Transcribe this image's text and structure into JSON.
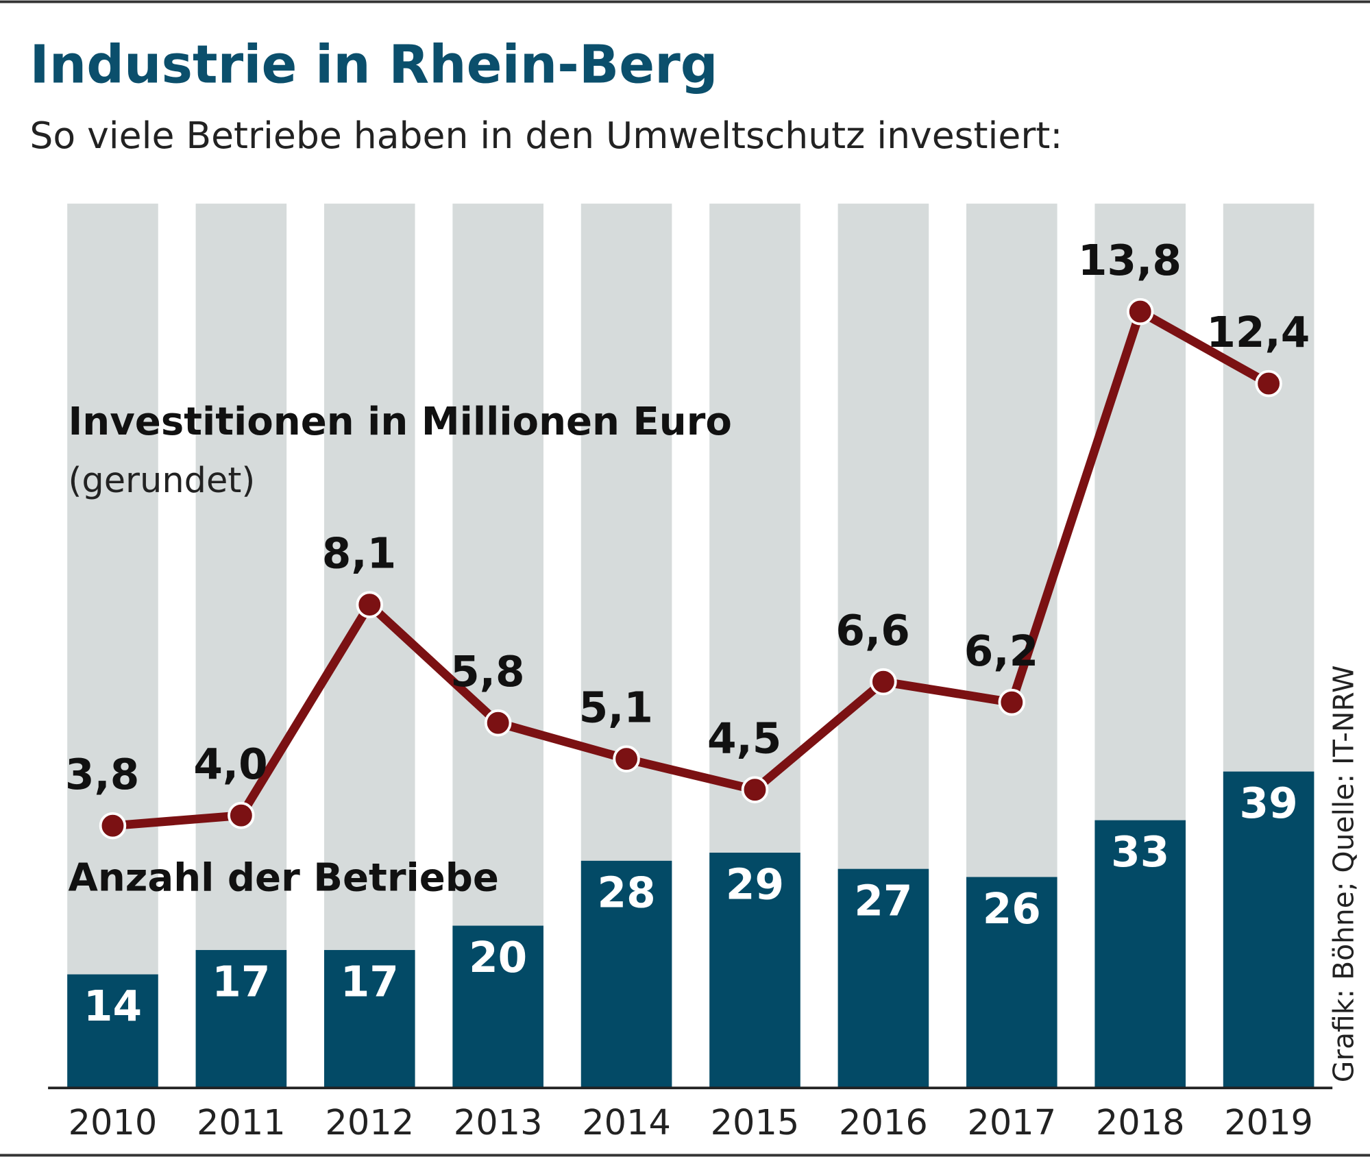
{
  "chart_data": {
    "type": "bar",
    "title": "Industrie in Rhein-Berg",
    "subtitle": "So viele Betriebe haben in den Umweltschutz investiert:",
    "source": "Grafik: Böhne; Quelle: IT-NRW",
    "categories": [
      "2010",
      "2011",
      "2012",
      "2013",
      "2014",
      "2015",
      "2016",
      "2017",
      "2018",
      "2019"
    ],
    "series": [
      {
        "name": "Anzahl der Betriebe",
        "type": "bar",
        "color": "#034a66",
        "values": [
          14,
          17,
          17,
          20,
          28,
          29,
          27,
          26,
          33,
          39
        ]
      },
      {
        "name": "Investitionen in Millionen Euro",
        "note": "(gerundet)",
        "type": "line",
        "axis": "y2",
        "color": "#7b1113",
        "values": [
          3.8,
          4.0,
          8.1,
          5.8,
          5.1,
          4.5,
          6.6,
          6.2,
          13.8,
          12.4
        ],
        "value_labels": [
          "3,8",
          "4,0",
          "8,1",
          "5,8",
          "5,1",
          "4,5",
          "6,6",
          "6,2",
          "13,8",
          "12,4"
        ]
      }
    ],
    "ylim": [
      0,
      109
    ],
    "y2lim": [
      -1.3,
      15.9
    ],
    "background_color": "#d6dbdb"
  }
}
